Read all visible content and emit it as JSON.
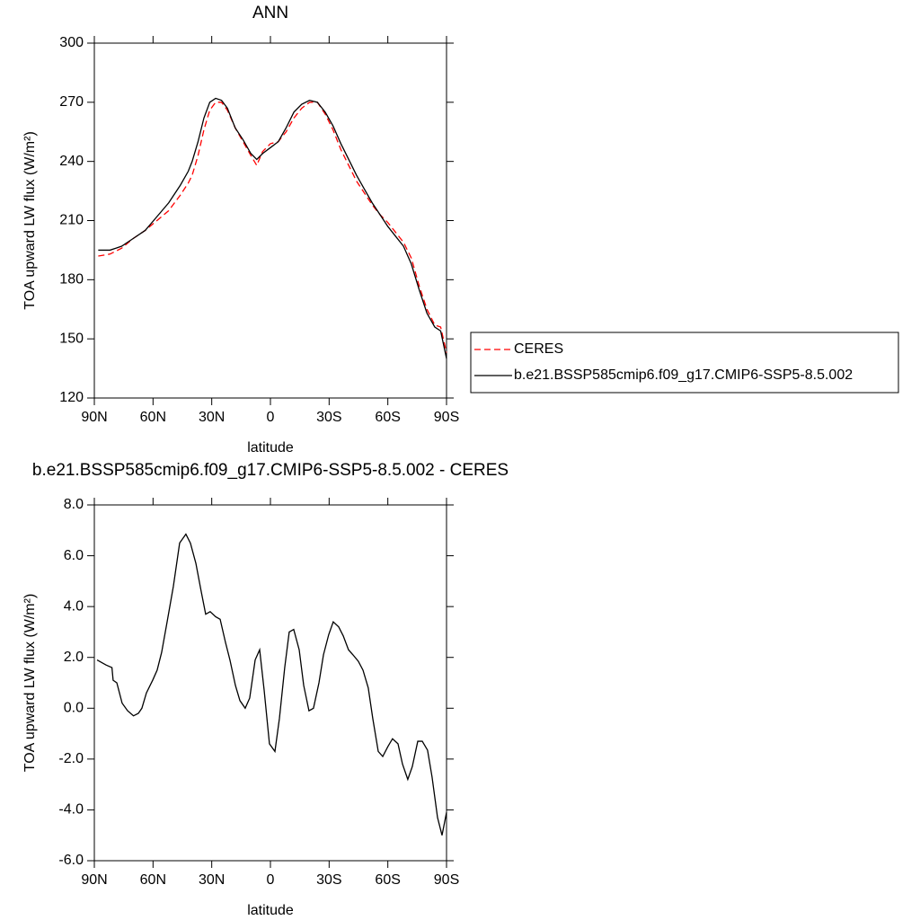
{
  "chart_data": [
    {
      "type": "line",
      "title": "ANN",
      "xlabel": "latitude",
      "ylabel": "TOA upward LW flux (W/m²)",
      "x": [
        88,
        82,
        76,
        70,
        64,
        58,
        52,
        46,
        42,
        40,
        37,
        34,
        31,
        28,
        25,
        22,
        18,
        14,
        10,
        7,
        4,
        0,
        -4,
        -8,
        -12,
        -16,
        -20,
        -24,
        -28,
        -32,
        -36,
        -40,
        -44,
        -48,
        -52,
        -56,
        -60,
        -64,
        -68,
        -72,
        -76,
        -80,
        -84,
        -87,
        -90
      ],
      "series": [
        {
          "name": "CERES",
          "color": "#ff0000",
          "dashed": true,
          "values": [
            192,
            193,
            196,
            201,
            205,
            210,
            215,
            223,
            229,
            233,
            243,
            256,
            266,
            270,
            270,
            266,
            257,
            250,
            243,
            238,
            245,
            249,
            250,
            255,
            262,
            267,
            270,
            270,
            264,
            256,
            246,
            238,
            230,
            224,
            218,
            213,
            209,
            204,
            199,
            191,
            177,
            165,
            157,
            156,
            143
          ]
        },
        {
          "name": "b.e21.BSSP585cmip6.f09_g17.CMIP6-SSP5-8.5.002",
          "color": "#000000",
          "dashed": false,
          "values": [
            195,
            195,
            197,
            201,
            205,
            212,
            219,
            228,
            235,
            240,
            250,
            262,
            270,
            272,
            271,
            267,
            257,
            251,
            244,
            241,
            244,
            247,
            250,
            257,
            265,
            269,
            271,
            270,
            265,
            258,
            249,
            241,
            233,
            226,
            219,
            213,
            207,
            202,
            197,
            188,
            175,
            163,
            156,
            154,
            140
          ]
        }
      ],
      "xlim": [
        90,
        -90
      ],
      "xticks": [
        {
          "value": 90,
          "label": "90N"
        },
        {
          "value": 60,
          "label": "60N"
        },
        {
          "value": 30,
          "label": "30N"
        },
        0,
        {
          "value": -30,
          "label": "30S"
        },
        {
          "value": -60,
          "label": "60S"
        },
        {
          "value": -90,
          "label": "90S"
        }
      ],
      "ylim": [
        120,
        300
      ],
      "yticks": [
        120,
        150,
        180,
        210,
        240,
        270,
        300
      ],
      "legend": "right"
    },
    {
      "type": "line",
      "title": "b.e21.BSSP585cmip6.f09_g17.CMIP6-SSP5-8.5.002 - CERES",
      "xlabel": "latitude",
      "ylabel": "TOA upward LW flux (W/m²)",
      "x": [
        88.6,
        84,
        81,
        80.4,
        78.5,
        75.8,
        73,
        70,
        67.5,
        65.7,
        63.4,
        60.2,
        57.9,
        55.6,
        52.8,
        49.6,
        46.4,
        43.2,
        40.9,
        38.1,
        35.4,
        33.1,
        30.8,
        28,
        25.7,
        23,
        20.7,
        17.9,
        15.6,
        12.9,
        10.6,
        7.8,
        5.5,
        3.2,
        0.5,
        -2.3,
        -4.6,
        -7.3,
        -9.6,
        -11.9,
        -14.7,
        -17,
        -19.7,
        -22,
        -24.8,
        -27.1,
        -29.8,
        -32.1,
        -34.9,
        -37.2,
        -39.9,
        -42.2,
        -44.9,
        -47.3,
        -50,
        -52.3,
        -55.1,
        -57.4,
        -60.1,
        -62.4,
        -65.2,
        -67.5,
        -70.2,
        -72.5,
        -75.3,
        -77.6,
        -80.3,
        -82.6,
        -85.4,
        -87.7,
        -90
      ],
      "values": [
        1.9,
        1.7,
        1.6,
        1.1,
        1.0,
        0.2,
        -0.1,
        -0.3,
        -0.2,
        0.0,
        0.6,
        1.1,
        1.5,
        2.2,
        3.4,
        4.8,
        6.5,
        6.85,
        6.5,
        5.7,
        4.6,
        3.7,
        3.8,
        3.6,
        3.5,
        2.6,
        1.9,
        0.9,
        0.3,
        0.0,
        0.4,
        1.9,
        2.3,
        0.7,
        -1.4,
        -1.7,
        -0.4,
        1.6,
        3.0,
        3.1,
        2.3,
        0.9,
        -0.1,
        0.0,
        1.0,
        2.1,
        2.9,
        3.4,
        3.2,
        2.85,
        2.3,
        2.1,
        1.85,
        1.5,
        0.8,
        -0.4,
        -1.7,
        -1.9,
        -1.5,
        -1.2,
        -1.4,
        -2.2,
        -2.8,
        -2.3,
        -1.3,
        -1.3,
        -1.65,
        -2.7,
        -4.3,
        -5.0,
        -4.1
      ],
      "color": "#000000",
      "xlim": [
        90,
        -90
      ],
      "xticks": [
        {
          "value": 90,
          "label": "90N"
        },
        {
          "value": 60,
          "label": "60N"
        },
        {
          "value": 30,
          "label": "30N"
        },
        0,
        {
          "value": -30,
          "label": "30S"
        },
        {
          "value": -60,
          "label": "60S"
        },
        {
          "value": -90,
          "label": "90S"
        }
      ],
      "ylim": [
        -6,
        8
      ],
      "yticks": [
        {
          "value": -6,
          "label": "-6.0"
        },
        {
          "value": -4,
          "label": "-4.0"
        },
        {
          "value": -2,
          "label": "-2.0"
        },
        {
          "value": 0,
          "label": "0.0"
        },
        {
          "value": 2,
          "label": "2.0"
        },
        {
          "value": 4,
          "label": "4.0"
        },
        {
          "value": 6,
          "label": "6.0"
        },
        {
          "value": 8,
          "label": "8.0"
        }
      ]
    }
  ]
}
